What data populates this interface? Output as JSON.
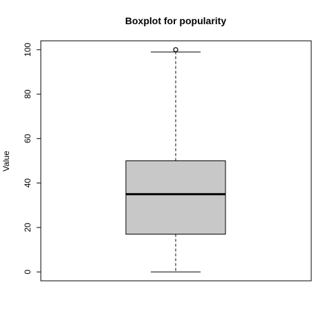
{
  "chart_data": {
    "type": "boxplot",
    "title": "Boxplot for popularity",
    "ylabel": "Value",
    "xlabel": "",
    "ylim": [
      -4,
      104
    ],
    "yticks": [
      0,
      20,
      40,
      60,
      80,
      100
    ],
    "box": {
      "whisker_low": 0,
      "q1": 17,
      "median": 35,
      "q3": 50,
      "whisker_high": 99
    },
    "outliers": [
      100
    ],
    "colors": {
      "box_fill": "#c8c8c8",
      "stroke": "#000000"
    }
  }
}
